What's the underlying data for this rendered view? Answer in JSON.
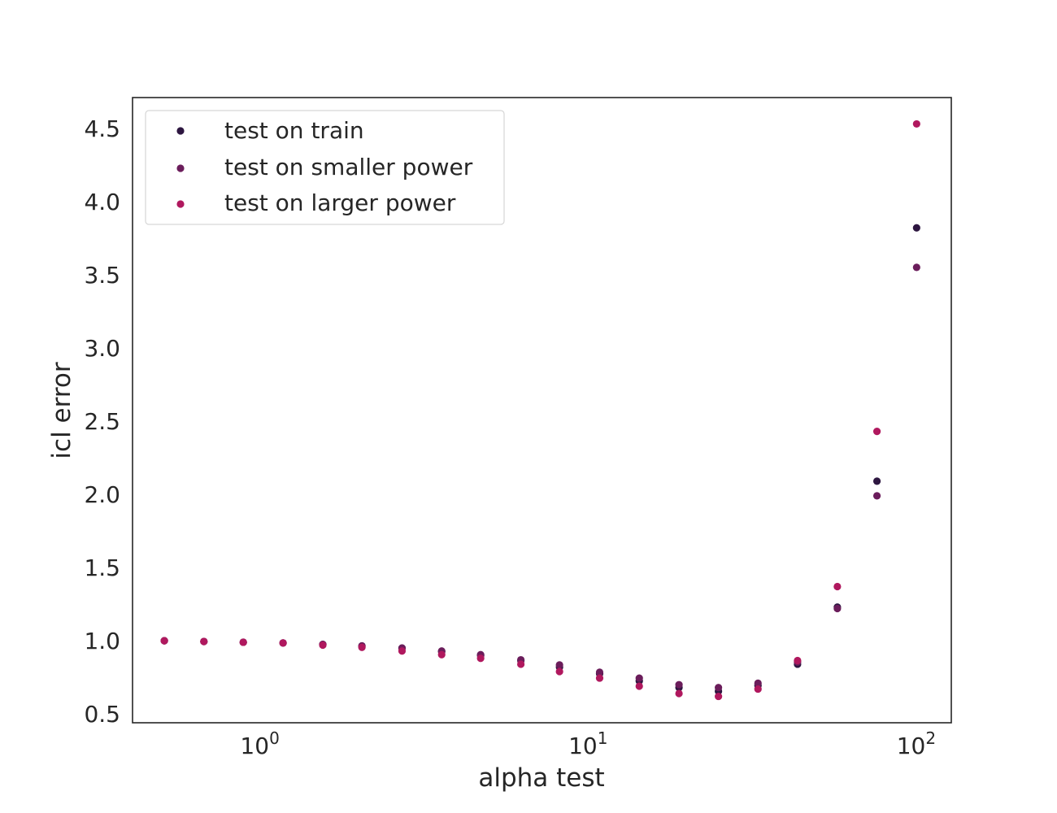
{
  "chart_data": {
    "type": "scatter",
    "title": "",
    "xlabel": "alpha test",
    "ylabel": "icl error",
    "xscale": "log",
    "xlim": [
      0.4,
      125
    ],
    "ylim": [
      0.44,
      4.71
    ],
    "grid": false,
    "legend_position": "upper left",
    "x_ticks": [
      {
        "value": 1,
        "base": "10",
        "exp": "0"
      },
      {
        "value": 10,
        "base": "10",
        "exp": "1"
      },
      {
        "value": 100,
        "base": "10",
        "exp": "2"
      }
    ],
    "y_ticks": [
      {
        "value": 0.5,
        "label": "0.5"
      },
      {
        "value": 1.0,
        "label": "1.0"
      },
      {
        "value": 1.5,
        "label": "1.5"
      },
      {
        "value": 2.0,
        "label": "2.0"
      },
      {
        "value": 2.5,
        "label": "2.5"
      },
      {
        "value": 3.0,
        "label": "3.0"
      },
      {
        "value": 3.5,
        "label": "3.5"
      },
      {
        "value": 4.0,
        "label": "4.0"
      },
      {
        "value": 4.5,
        "label": "4.5"
      }
    ],
    "x": [
      0.5,
      0.66,
      0.87,
      1.15,
      1.52,
      2.0,
      2.65,
      3.5,
      4.6,
      6.1,
      8.0,
      10.6,
      14.0,
      18.5,
      24.4,
      32.2,
      42.5,
      56.2,
      74.2,
      98.0
    ],
    "series": [
      {
        "name": "test on train",
        "color": "#2d1640",
        "values": [
          1.0,
          0.995,
          0.99,
          0.985,
          0.975,
          0.965,
          0.95,
          0.925,
          0.9,
          0.865,
          0.82,
          0.775,
          0.725,
          0.68,
          0.655,
          0.695,
          0.84,
          1.23,
          2.09,
          3.82
        ]
      },
      {
        "name": "test on smaller power",
        "color": "#6b1d5b",
        "values": [
          1.0,
          0.995,
          0.99,
          0.985,
          0.975,
          0.965,
          0.95,
          0.93,
          0.905,
          0.87,
          0.835,
          0.785,
          0.745,
          0.7,
          0.68,
          0.71,
          0.855,
          1.22,
          1.99,
          3.55
        ]
      },
      {
        "name": "test on larger power",
        "color": "#b0185e",
        "values": [
          1.0,
          0.995,
          0.99,
          0.985,
          0.97,
          0.955,
          0.93,
          0.905,
          0.88,
          0.84,
          0.79,
          0.745,
          0.69,
          0.64,
          0.62,
          0.67,
          0.865,
          1.37,
          2.43,
          4.53
        ]
      }
    ]
  }
}
